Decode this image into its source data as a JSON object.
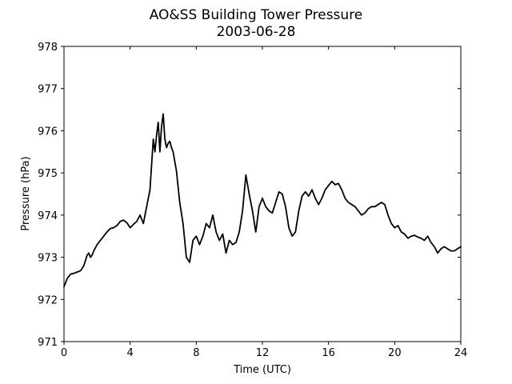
{
  "chart_data": {
    "type": "line",
    "title": "AO&SS Building Tower Pressure",
    "subtitle": "2003-06-28",
    "xlabel": "Time (UTC)",
    "ylabel": "Pressure (hPa)",
    "xlim": [
      0,
      24
    ],
    "ylim": [
      971,
      978
    ],
    "xticks": [
      0,
      4,
      8,
      12,
      16,
      20,
      24
    ],
    "yticks": [
      971,
      972,
      973,
      974,
      975,
      976,
      977,
      978
    ],
    "grid": false,
    "line_color": "#000000",
    "series": [
      {
        "x": [
          0,
          0.2,
          0.4,
          0.6,
          0.8,
          1.0,
          1.2,
          1.4,
          1.5,
          1.6,
          1.7,
          1.8,
          2.0,
          2.2,
          2.4,
          2.6,
          2.8,
          3.0,
          3.2,
          3.4,
          3.6,
          3.8,
          4.0,
          4.2,
          4.4,
          4.6,
          4.8,
          5.0,
          5.2,
          5.4,
          5.5,
          5.6,
          5.7,
          5.8,
          5.9,
          6.0,
          6.1,
          6.2,
          6.3,
          6.4,
          6.5,
          6.6,
          6.8,
          7.0,
          7.2,
          7.4,
          7.6,
          7.8,
          8.0,
          8.2,
          8.4,
          8.6,
          8.8,
          9.0,
          9.2,
          9.4,
          9.6,
          9.8,
          10.0,
          10.2,
          10.4,
          10.6,
          10.8,
          11.0,
          11.2,
          11.4,
          11.6,
          11.8,
          12.0,
          12.2,
          12.4,
          12.6,
          12.8,
          13.0,
          13.2,
          13.4,
          13.6,
          13.8,
          14.0,
          14.2,
          14.4,
          14.6,
          14.8,
          15.0,
          15.2,
          15.4,
          15.6,
          15.8,
          16.0,
          16.2,
          16.4,
          16.6,
          16.8,
          17.0,
          17.2,
          17.4,
          17.6,
          17.8,
          18.0,
          18.2,
          18.4,
          18.6,
          18.8,
          19.0,
          19.2,
          19.4,
          19.6,
          19.8,
          20.0,
          20.2,
          20.4,
          20.6,
          20.8,
          21.0,
          21.2,
          21.4,
          21.6,
          21.8,
          22.0,
          22.2,
          22.4,
          22.6,
          22.8,
          23.0,
          23.2,
          23.4,
          23.6,
          23.8,
          24.0
        ],
        "y": [
          972.3,
          972.5,
          972.6,
          972.62,
          972.65,
          972.68,
          972.8,
          973.05,
          973.1,
          973.0,
          973.05,
          973.15,
          973.3,
          973.4,
          973.5,
          973.6,
          973.68,
          973.7,
          973.75,
          973.85,
          973.88,
          973.82,
          973.7,
          973.78,
          973.85,
          974.0,
          973.8,
          974.2,
          974.6,
          975.8,
          975.5,
          975.9,
          976.2,
          975.5,
          976.1,
          976.4,
          975.8,
          975.6,
          975.7,
          975.75,
          975.6,
          975.5,
          975.05,
          974.3,
          973.8,
          973.0,
          972.88,
          973.4,
          973.5,
          973.3,
          973.5,
          973.8,
          973.7,
          974.0,
          973.6,
          973.4,
          973.55,
          973.1,
          973.4,
          973.3,
          973.35,
          973.6,
          974.1,
          974.95,
          974.5,
          974.1,
          973.6,
          974.2,
          974.4,
          974.2,
          974.1,
          974.05,
          974.3,
          974.55,
          974.5,
          974.2,
          973.7,
          973.5,
          973.6,
          974.1,
          974.45,
          974.55,
          974.45,
          974.6,
          974.4,
          974.25,
          974.4,
          974.6,
          974.7,
          974.8,
          974.72,
          974.75,
          974.6,
          974.4,
          974.3,
          974.25,
          974.2,
          974.1,
          974.0,
          974.05,
          974.15,
          974.2,
          974.2,
          974.25,
          974.3,
          974.25,
          974.0,
          973.8,
          973.7,
          973.75,
          973.6,
          973.55,
          973.45,
          973.5,
          973.52,
          973.48,
          973.45,
          973.4,
          973.5,
          973.35,
          973.25,
          973.1,
          973.2,
          973.25,
          973.2,
          973.15,
          973.15,
          973.2,
          973.25
        ]
      }
    ]
  }
}
